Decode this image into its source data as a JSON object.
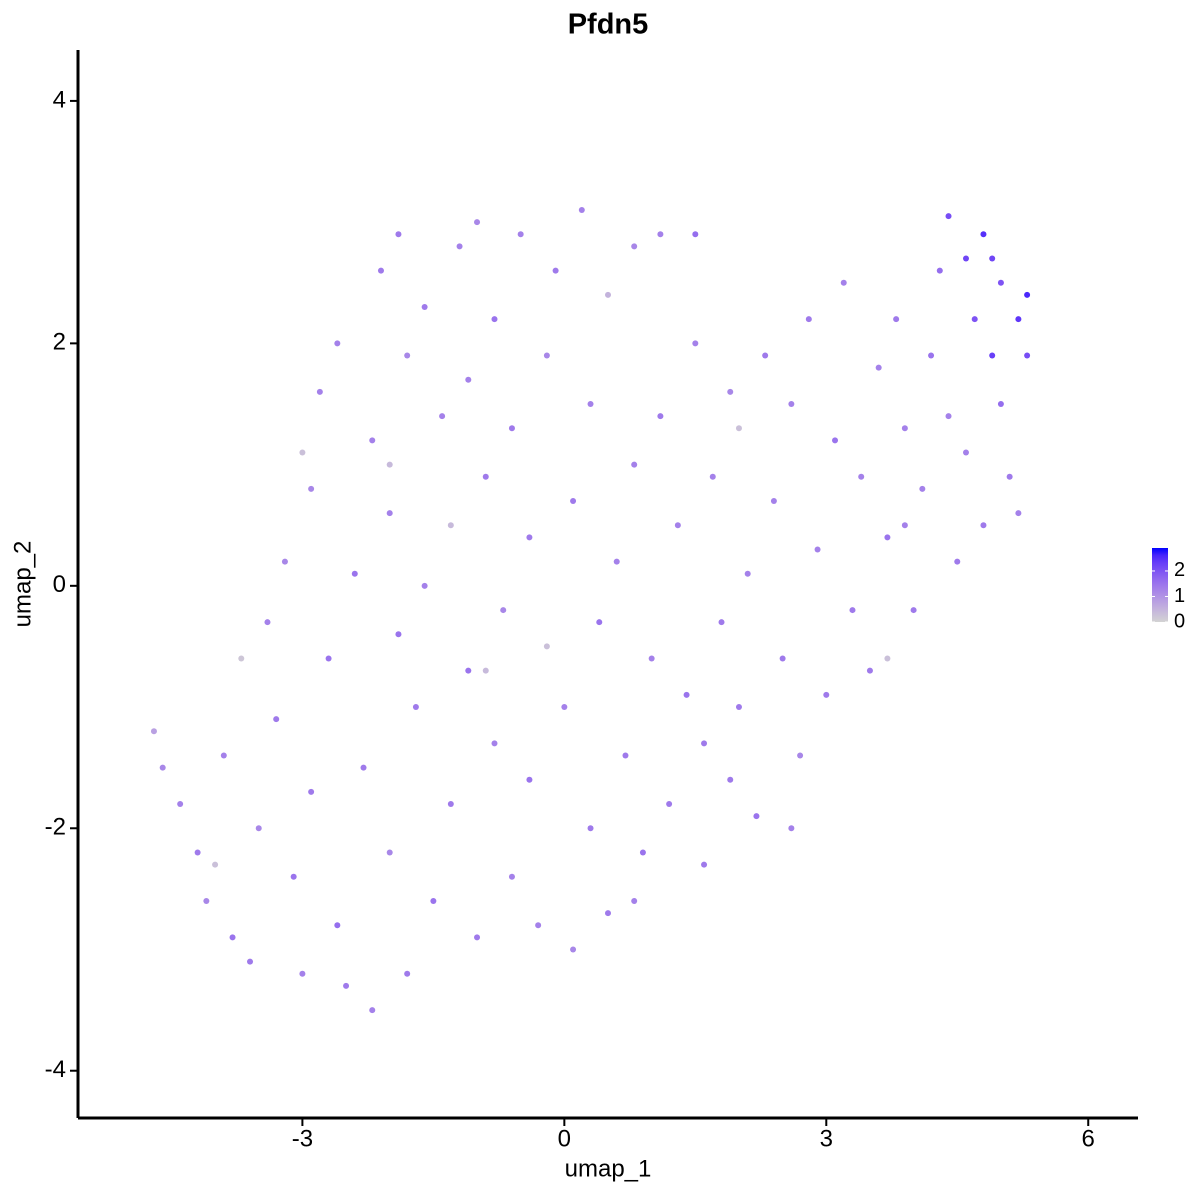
{
  "chart_data": {
    "type": "scatter",
    "title": "Pfdn5",
    "x_label": "umap_1",
    "y_label": "umap_2",
    "xlim": [
      -5.57,
      6.57
    ],
    "ylim": [
      -4.39,
      4.42
    ],
    "xticks": [
      -3,
      0,
      3,
      6
    ],
    "yticks": [
      -4,
      -2,
      0,
      2,
      4
    ],
    "color_scale": {
      "low": "#d3d3d3",
      "high": "#0000ff",
      "lim": [
        0,
        2.9
      ],
      "ticks": [
        0,
        1,
        2
      ]
    },
    "point_radius": 3,
    "x": [
      -4.7,
      -4.6,
      -4.4,
      -4.2,
      -4.1,
      -3.9,
      -3.8,
      -3.6,
      -3.5,
      -3.4,
      -3.3,
      -3.2,
      -3.1,
      -3.0,
      -2.9,
      -2.9,
      -2.8,
      -2.7,
      -2.6,
      -2.6,
      -2.5,
      -2.4,
      -2.3,
      -2.2,
      -2.2,
      -2.1,
      -2.0,
      -2.0,
      -1.9,
      -1.9,
      -1.8,
      -1.8,
      -1.7,
      -1.6,
      -1.6,
      -1.5,
      -1.4,
      -1.3,
      -1.3,
      -1.2,
      -1.1,
      -1.1,
      -1.0,
      -1.0,
      -0.9,
      -0.8,
      -0.8,
      -0.7,
      -0.6,
      -0.6,
      -0.5,
      -0.4,
      -0.4,
      -0.3,
      -0.2,
      -0.2,
      -0.1,
      0.0,
      0.1,
      0.1,
      0.2,
      0.3,
      0.3,
      0.4,
      0.5,
      0.5,
      0.6,
      0.7,
      0.8,
      0.8,
      0.9,
      1.0,
      1.1,
      1.1,
      1.2,
      1.3,
      1.4,
      1.5,
      1.6,
      1.7,
      1.8,
      1.9,
      2.0,
      2.0,
      2.1,
      2.2,
      2.3,
      2.4,
      2.5,
      2.6,
      2.7,
      2.8,
      2.9,
      3.0,
      3.1,
      3.2,
      3.3,
      3.4,
      3.5,
      3.6,
      3.7,
      3.7,
      3.8,
      3.9,
      4.0,
      4.1,
      4.2,
      4.3,
      4.4,
      4.4,
      4.5,
      4.6,
      4.6,
      4.7,
      4.8,
      4.8,
      4.9,
      5.0,
      5.0,
      5.1,
      5.2,
      5.3,
      5.3,
      5.2,
      4.9,
      -3.7,
      -4.0,
      -2.0,
      -3.0,
      1.5,
      -0.9,
      3.9,
      2.6,
      1.9,
      1.6,
      0.8
    ],
    "y": [
      -1.2,
      -1.5,
      -1.8,
      -2.2,
      -2.6,
      -1.4,
      -2.9,
      -3.1,
      -2.0,
      -0.3,
      -1.1,
      0.2,
      -2.4,
      -3.2,
      -1.7,
      0.8,
      1.6,
      -0.6,
      2.0,
      -2.8,
      -3.3,
      0.1,
      -1.5,
      1.2,
      -3.5,
      2.6,
      -2.2,
      0.6,
      -0.4,
      2.9,
      1.9,
      -3.2,
      -1.0,
      0.0,
      2.3,
      -2.6,
      1.4,
      -1.8,
      0.5,
      2.8,
      -0.7,
      1.7,
      -2.9,
      3.0,
      0.9,
      -1.3,
      2.2,
      -0.2,
      1.3,
      -2.4,
      2.9,
      0.4,
      -1.6,
      -2.8,
      1.9,
      -0.5,
      2.6,
      -1.0,
      0.7,
      -3.0,
      3.1,
      -2.0,
      1.5,
      -0.3,
      2.4,
      -2.7,
      0.2,
      -1.4,
      1.0,
      2.8,
      -2.2,
      -0.6,
      1.4,
      2.9,
      -1.8,
      0.5,
      -0.9,
      2.0,
      -1.3,
      0.9,
      -0.3,
      1.6,
      -1.0,
      1.3,
      0.1,
      -1.9,
      1.9,
      0.7,
      -0.6,
      1.5,
      -1.4,
      2.2,
      0.3,
      -0.9,
      1.2,
      2.5,
      -0.2,
      0.9,
      -0.7,
      1.8,
      0.4,
      -0.6,
      2.2,
      1.3,
      -0.2,
      0.8,
      1.9,
      2.6,
      1.4,
      3.05,
      0.2,
      2.7,
      1.1,
      2.2,
      2.9,
      0.5,
      1.9,
      1.5,
      2.5,
      0.9,
      2.2,
      1.9,
      2.4,
      0.6,
      2.7,
      -0.6,
      -2.3,
      1.0,
      1.1,
      2.9,
      -0.7,
      0.5,
      -2.0,
      -1.6,
      -2.3,
      -2.6
    ],
    "values": [
      0.8,
      1.2,
      1.3,
      1.4,
      1.2,
      1.3,
      1.5,
      1.4,
      1.2,
      1.3,
      1.4,
      1.2,
      1.5,
      1.3,
      1.4,
      1.2,
      1.3,
      1.5,
      1.3,
      1.6,
      1.4,
      1.5,
      1.4,
      1.3,
      1.3,
      1.4,
      1.2,
      1.3,
      1.5,
      1.4,
      1.2,
      1.4,
      1.4,
      1.3,
      1.4,
      1.5,
      1.3,
      1.4,
      0.4,
      1.3,
      1.5,
      1.3,
      1.4,
      1.2,
      1.4,
      1.3,
      1.5,
      1.2,
      1.4,
      1.3,
      1.3,
      1.4,
      1.5,
      1.3,
      1.2,
      0.3,
      1.4,
      1.3,
      1.4,
      1.2,
      1.3,
      1.4,
      1.3,
      1.5,
      0.5,
      1.4,
      1.3,
      1.4,
      1.3,
      1.2,
      1.5,
      1.3,
      1.4,
      1.3,
      1.4,
      1.3,
      1.5,
      1.3,
      1.4,
      1.3,
      1.4,
      1.2,
      1.4,
      0.3,
      1.3,
      1.5,
      1.4,
      1.3,
      1.4,
      1.3,
      1.2,
      1.4,
      1.3,
      1.4,
      1.5,
      1.3,
      1.4,
      1.3,
      1.4,
      1.3,
      1.5,
      0.3,
      1.4,
      1.3,
      1.4,
      1.3,
      1.5,
      1.6,
      1.3,
      2.1,
      1.4,
      2.2,
      1.3,
      2.0,
      2.5,
      1.4,
      2.3,
      1.6,
      2.0,
      1.4,
      2.4,
      2.1,
      2.6,
      1.3,
      2.2,
      0.2,
      0.3,
      0.4,
      0.3,
      1.6,
      0.4,
      1.3,
      1.3,
      1.4,
      1.4,
      1.3
    ]
  }
}
